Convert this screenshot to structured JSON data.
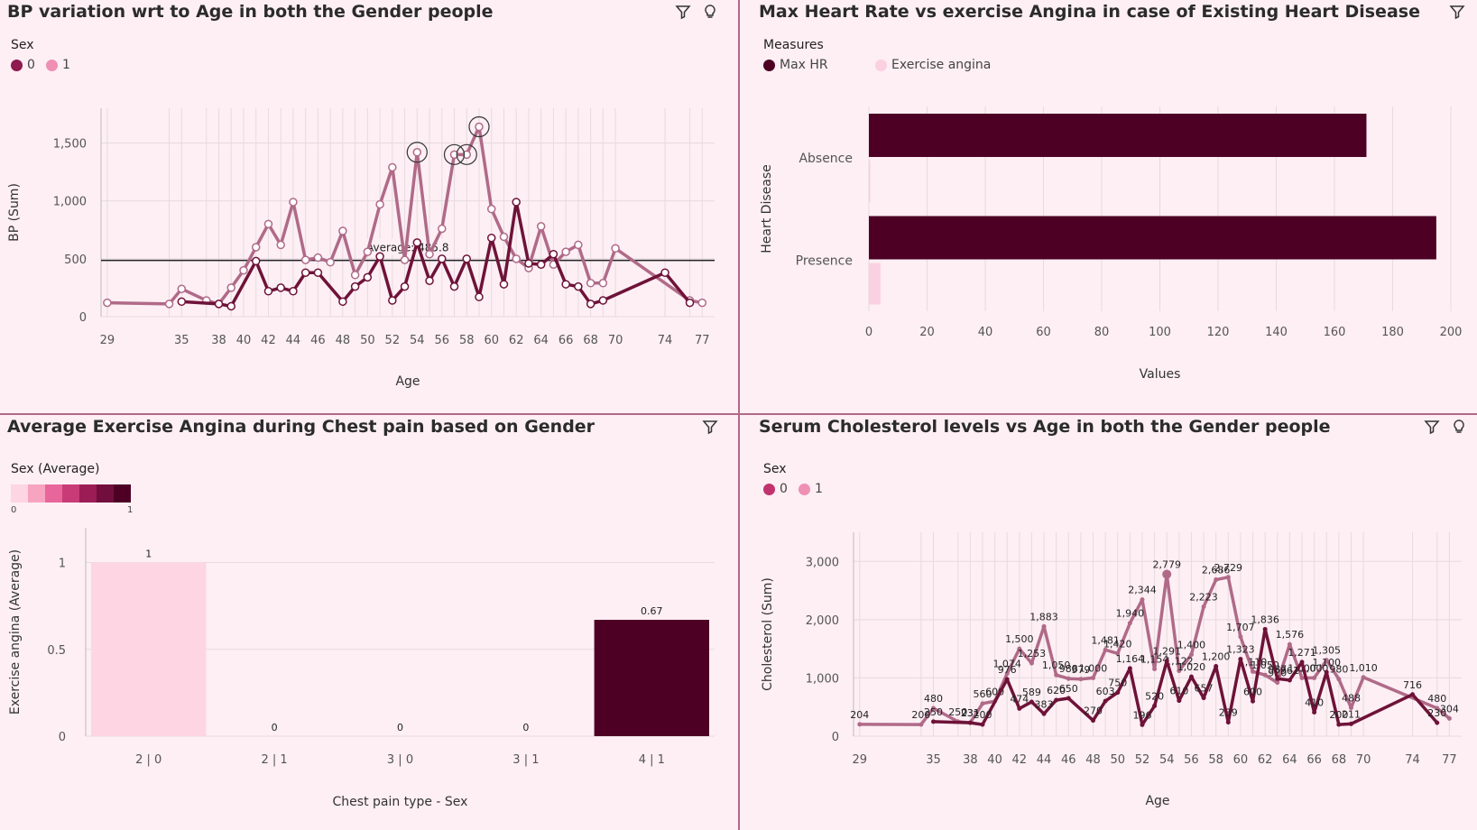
{
  "charts": {
    "bp": {
      "title": "BP variation wrt to Age in both the Gender people",
      "legend_title": "Sex",
      "legend": [
        {
          "label": "0",
          "color": "#8e1a4e"
        },
        {
          "label": "1",
          "color": "#ef8fb3"
        }
      ],
      "ylabel": "BP (Sum)",
      "xlabel": "Age",
      "avg_label": "Average: 485.8",
      "xticks": [
        "29",
        "35",
        "38",
        "40",
        "42",
        "44",
        "46",
        "48",
        "50",
        "52",
        "54",
        "56",
        "58",
        "60",
        "62",
        "64",
        "66",
        "68",
        "70",
        "74",
        "77"
      ],
      "yticks": [
        "0",
        "500",
        "1,000",
        "1,500"
      ]
    },
    "hr": {
      "title": "Max Heart Rate vs exercise Angina in case of Existing Heart Disease",
      "legend_title": "Measures",
      "legend": [
        {
          "label": "Max HR",
          "color": "#4d0024"
        },
        {
          "label": "Exercise angina",
          "color": "#fbd0e0"
        }
      ],
      "ylabel": "Heart Disease",
      "xlabel": "Values",
      "categories": [
        "Absence",
        "Presence"
      ],
      "xticks": [
        "0",
        "20",
        "40",
        "60",
        "80",
        "100",
        "120",
        "140",
        "160",
        "180",
        "200"
      ]
    },
    "angina": {
      "title": "Average Exercise Angina during Chest pain based on Gender",
      "legend_title": "Sex (Average)",
      "legend_min": "0",
      "legend_max": "1",
      "ylabel": "Exercise angina (Average)",
      "xlabel": "Chest pain type - Sex",
      "yticks": [
        "0",
        "0.5",
        "1"
      ]
    },
    "chol": {
      "title": "Serum Cholesterol levels vs Age in both the Gender people",
      "legend_title": "Sex",
      "legend": [
        {
          "label": "0",
          "color": "#c2336e"
        },
        {
          "label": "1",
          "color": "#ef8fb3"
        }
      ],
      "ylabel": "Cholesterol (Sum)",
      "xlabel": "Age",
      "xticks": [
        "29",
        "35",
        "38",
        "40",
        "42",
        "44",
        "46",
        "48",
        "50",
        "52",
        "54",
        "56",
        "58",
        "60",
        "62",
        "64",
        "66",
        "68",
        "70",
        "74",
        "77"
      ],
      "yticks": [
        "0",
        "1,000",
        "2,000",
        "3,000"
      ]
    }
  },
  "chart_data": [
    {
      "type": "line",
      "title": "BP variation wrt to Age in both the Gender people",
      "xlabel": "Age",
      "ylabel": "BP (Sum)",
      "ylim": [
        0,
        1800
      ],
      "x": [
        29,
        34,
        35,
        37,
        38,
        39,
        40,
        41,
        42,
        43,
        44,
        45,
        46,
        47,
        48,
        49,
        50,
        51,
        52,
        53,
        54,
        55,
        56,
        57,
        58,
        59,
        60,
        61,
        62,
        63,
        64,
        65,
        66,
        67,
        68,
        69,
        70,
        74,
        76,
        77
      ],
      "series": [
        {
          "name": "0",
          "color": "#6e1238",
          "values": [
            null,
            null,
            130,
            null,
            110,
            90,
            null,
            480,
            220,
            250,
            220,
            380,
            380,
            null,
            130,
            260,
            340,
            520,
            140,
            260,
            640,
            310,
            500,
            260,
            500,
            170,
            680,
            280,
            990,
            460,
            450,
            540,
            280,
            260,
            110,
            140,
            null,
            380,
            120,
            null
          ]
        },
        {
          "name": "1",
          "color": "#b06a88",
          "values": [
            120,
            110,
            240,
            140,
            110,
            250,
            400,
            600,
            800,
            620,
            990,
            490,
            510,
            470,
            740,
            360,
            560,
            970,
            1290,
            490,
            1420,
            540,
            760,
            1400,
            1400,
            1640,
            930,
            690,
            500,
            420,
            780,
            450,
            560,
            620,
            290,
            290,
            590,
            null,
            140,
            120
          ]
        }
      ],
      "average_line": 485.8,
      "legend": "top-left",
      "grid": true
    },
    {
      "type": "bar",
      "orientation": "horizontal",
      "title": "Max Heart Rate vs exercise Angina in case of Existing Heart Disease",
      "xlabel": "Values",
      "ylabel": "Heart Disease",
      "categories": [
        "Absence",
        "Presence"
      ],
      "series": [
        {
          "name": "Max HR",
          "color": "#4d0024",
          "values": [
            171,
            195
          ]
        },
        {
          "name": "Exercise angina",
          "color": "#fbd0e0",
          "values": [
            0.5,
            4
          ]
        }
      ],
      "xlim": [
        0,
        200
      ],
      "legend": "top-left",
      "grid": true
    },
    {
      "type": "bar",
      "title": "Average Exercise Angina during Chest pain based on Gender",
      "xlabel": "Chest pain type - Sex",
      "ylabel": "Exercise angina (Average)",
      "categories": [
        "2 | 0",
        "2 | 1",
        "3 | 0",
        "3 | 1",
        "4 | 1"
      ],
      "values": [
        1,
        0,
        0,
        0,
        0.67
      ],
      "data_labels": [
        "1",
        "0",
        "0",
        "0",
        "0.67"
      ],
      "colors": [
        "#fdd5e3",
        "#fdd5e3",
        "#fdd5e3",
        "#fdd5e3",
        "#4d0024"
      ],
      "ylim": [
        0,
        1.2
      ],
      "legend": "top-left",
      "grid": true
    },
    {
      "type": "line",
      "title": "Serum Cholesterol levels vs Age in both the Gender people",
      "xlabel": "Age",
      "ylabel": "Cholesterol (Sum)",
      "ylim": [
        0,
        3500
      ],
      "x": [
        29,
        34,
        35,
        37,
        38,
        39,
        40,
        41,
        42,
        43,
        44,
        45,
        46,
        47,
        48,
        49,
        50,
        51,
        52,
        53,
        54,
        55,
        56,
        57,
        58,
        59,
        60,
        61,
        62,
        63,
        64,
        65,
        66,
        67,
        68,
        69,
        70,
        74,
        76,
        77
      ],
      "series": [
        {
          "name": "0",
          "color": "#6e1238",
          "values": [
            null,
            null,
            250,
            null,
            231,
            200,
            null,
            976,
            474,
            589,
            383,
            620,
            650,
            null,
            270,
            603,
            750,
            1164,
            196,
            520,
            1291,
            610,
            1020,
            657,
            1200,
            239,
            1323,
            600,
            1836,
            987,
            961,
            1271,
            410,
            1100,
            200,
            211,
            null,
            716,
            230,
            null
          ]
        },
        {
          "name": "1",
          "color": "#b06a88",
          "values": [
            204,
            200,
            480,
            250,
            231,
            560,
            600,
            1074,
            1500,
            1253,
            1883,
            1050,
            988,
            979,
            1000,
            1481,
            1420,
            1940,
            2344,
            1154,
            2779,
            1122,
            1400,
            2223,
            2686,
            2729,
            1707,
            1110,
            1050,
            920,
            1576,
            1000,
            1000,
            1305,
            980,
            488,
            1010,
            null,
            480,
            304
          ]
        }
      ],
      "legend": "top-left",
      "grid": true
    }
  ]
}
